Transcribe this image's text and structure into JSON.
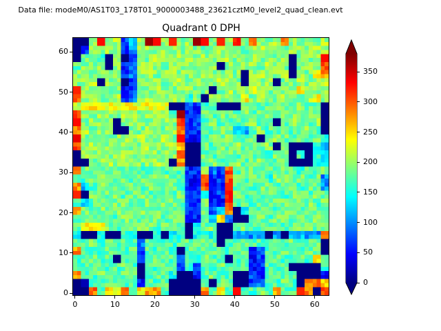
{
  "figure": {
    "suptitle": "Data file: modeM0/AS1T03_178T01_9000003488_23621cztM0_level2_quad_clean.evt",
    "background_color": "#ffffff"
  },
  "chart_data": {
    "type": "heatmap",
    "title": "Quadrant 0 DPH",
    "xlabel": "",
    "ylabel": "",
    "x_ticks": [
      0,
      10,
      20,
      30,
      40,
      50,
      60
    ],
    "y_ticks": [
      0,
      10,
      20,
      30,
      40,
      50,
      60
    ],
    "x_range": [
      -0.5,
      63.5
    ],
    "y_range": [
      -0.5,
      63.5
    ],
    "detector_grid": "64x64 detector pixels",
    "values_grid_note": "32x32 block estimate of the 64x64 DPH; row 0 = top of image (detector y 62-63), columns left to right (detector x 0-63); values are counts on the colorbar scale",
    "vmin": 0,
    "vmax": 380,
    "colormap": "jet",
    "colormap_stops": [
      [
        0.0,
        [
          0,
          0,
          128
        ]
      ],
      [
        0.125,
        [
          0,
          0,
          255
        ]
      ],
      [
        0.375,
        [
          0,
          255,
          255
        ]
      ],
      [
        0.625,
        [
          255,
          255,
          0
        ]
      ],
      [
        0.875,
        [
          255,
          0,
          0
        ]
      ],
      [
        1.0,
        [
          128,
          0,
          0
        ]
      ]
    ],
    "colorbar": {
      "ticks": [
        0,
        50,
        100,
        150,
        200,
        250,
        300,
        350
      ],
      "extend": "both",
      "over_color": "#800000",
      "under_color": "#000080"
    },
    "noise_amplitude": 26,
    "values": [
      [
        0,
        0,
        195,
        330,
        190,
        205,
        70,
        120,
        200,
        370,
        330,
        205,
        320,
        195,
        200,
        370,
        330,
        195,
        320,
        200,
        310,
        195,
        280,
        200,
        190,
        205,
        280,
        195,
        185,
        200,
        190,
        205
      ],
      [
        0,
        60,
        190,
        195,
        205,
        190,
        65,
        110,
        195,
        200,
        190,
        205,
        195,
        190,
        200,
        195,
        185,
        190,
        200,
        195,
        190,
        185,
        195,
        205,
        190,
        195,
        185,
        200,
        195,
        190,
        205,
        195
      ],
      [
        0,
        190,
        195,
        150,
        0,
        190,
        0,
        70,
        195,
        190,
        205,
        195,
        190,
        200,
        195,
        185,
        200,
        190,
        195,
        205,
        190,
        195,
        200,
        190,
        195,
        185,
        205,
        0,
        195,
        190,
        200,
        330
      ],
      [
        175,
        195,
        190,
        205,
        0,
        195,
        60,
        80,
        200,
        195,
        190,
        185,
        205,
        190,
        195,
        200,
        190,
        205,
        0,
        195,
        190,
        200,
        195,
        190,
        205,
        195,
        190,
        0,
        195,
        205,
        190,
        300
      ],
      [
        190,
        205,
        195,
        190,
        200,
        195,
        65,
        90,
        195,
        205,
        190,
        195,
        205,
        195,
        190,
        185,
        205,
        190,
        195,
        200,
        190,
        0,
        195,
        205,
        190,
        195,
        200,
        0,
        195,
        190,
        235,
        280
      ],
      [
        195,
        190,
        205,
        0,
        195,
        190,
        0,
        60,
        190,
        195,
        205,
        190,
        195,
        205,
        190,
        195,
        170,
        190,
        205,
        195,
        190,
        0,
        190,
        195,
        205,
        0,
        190,
        195,
        205,
        190,
        195,
        205
      ],
      [
        320,
        190,
        195,
        205,
        190,
        195,
        60,
        70,
        195,
        190,
        205,
        195,
        190,
        195,
        205,
        190,
        195,
        0,
        190,
        205,
        195,
        190,
        235,
        195,
        190,
        205,
        195,
        190,
        235,
        195,
        190,
        205
      ],
      [
        305,
        195,
        205,
        190,
        195,
        205,
        70,
        90,
        195,
        205,
        190,
        195,
        205,
        190,
        160,
        195,
        0,
        195,
        190,
        205,
        195,
        235,
        190,
        205,
        195,
        190,
        205,
        195,
        190,
        205,
        235,
        190
      ],
      [
        200,
        225,
        235,
        225,
        230,
        225,
        235,
        230,
        225,
        235,
        225,
        230,
        0,
        0,
        80,
        60,
        150,
        182,
        0,
        0,
        0,
        182,
        195,
        175,
        182,
        195,
        175,
        182,
        195,
        175,
        182,
        0
      ],
      [
        300,
        195,
        190,
        205,
        195,
        190,
        205,
        195,
        190,
        205,
        195,
        190,
        170,
        370,
        60,
        55,
        182,
        175,
        195,
        175,
        182,
        195,
        175,
        182,
        195,
        175,
        182,
        195,
        175,
        182,
        195,
        0
      ],
      [
        330,
        190,
        205,
        195,
        190,
        0,
        195,
        205,
        195,
        190,
        205,
        195,
        190,
        305,
        60,
        70,
        175,
        195,
        175,
        182,
        175,
        182,
        195,
        175,
        182,
        0,
        175,
        195,
        182,
        175,
        195,
        0
      ],
      [
        280,
        205,
        190,
        195,
        205,
        0,
        0,
        195,
        190,
        205,
        195,
        190,
        205,
        285,
        55,
        65,
        182,
        175,
        195,
        175,
        120,
        110,
        175,
        195,
        175,
        182,
        195,
        175,
        182,
        195,
        175,
        0
      ],
      [
        340,
        190,
        195,
        205,
        190,
        195,
        205,
        190,
        205,
        190,
        195,
        205,
        190,
        330,
        60,
        55,
        170,
        182,
        175,
        195,
        175,
        182,
        195,
        0,
        175,
        195,
        182,
        175,
        195,
        175,
        182,
        150
      ],
      [
        300,
        195,
        205,
        190,
        195,
        205,
        190,
        195,
        190,
        205,
        195,
        190,
        205,
        260,
        0,
        0,
        182,
        175,
        195,
        175,
        195,
        175,
        182,
        175,
        195,
        0,
        175,
        0,
        0,
        0,
        160,
        120
      ],
      [
        0,
        195,
        190,
        205,
        195,
        190,
        205,
        195,
        205,
        190,
        195,
        205,
        190,
        300,
        0,
        0,
        182,
        175,
        182,
        195,
        175,
        195,
        175,
        182,
        175,
        195,
        182,
        0,
        175,
        0,
        160,
        120
      ],
      [
        0,
        0,
        190,
        195,
        205,
        190,
        195,
        205,
        190,
        195,
        205,
        190,
        0,
        280,
        0,
        0,
        175,
        195,
        175,
        182,
        195,
        175,
        182,
        195,
        175,
        182,
        195,
        0,
        0,
        0,
        160,
        150
      ],
      [
        280,
        186,
        170,
        186,
        172,
        188,
        172,
        186,
        172,
        150,
        186,
        172,
        188,
        172,
        60,
        65,
        200,
        90,
        70,
        305,
        172,
        186,
        188,
        172,
        186,
        172,
        188,
        186,
        160,
        172,
        172,
        186
      ],
      [
        170,
        172,
        186,
        188,
        172,
        186,
        188,
        172,
        186,
        172,
        188,
        186,
        172,
        172,
        60,
        55,
        280,
        60,
        70,
        300,
        186,
        172,
        188,
        172,
        160,
        186,
        188,
        172,
        186,
        172,
        188,
        100
      ],
      [
        280,
        120,
        172,
        186,
        188,
        172,
        186,
        188,
        172,
        186,
        170,
        172,
        188,
        172,
        55,
        60,
        305,
        55,
        65,
        320,
        172,
        188,
        172,
        186,
        188,
        172,
        186,
        188,
        172,
        186,
        172,
        100
      ],
      [
        320,
        0,
        188,
        172,
        186,
        188,
        172,
        186,
        188,
        172,
        186,
        188,
        172,
        186,
        60,
        65,
        160,
        60,
        70,
        310,
        186,
        172,
        188,
        172,
        186,
        188,
        172,
        186,
        188,
        172,
        186,
        172
      ],
      [
        172,
        120,
        172,
        186,
        172,
        186,
        188,
        172,
        186,
        188,
        172,
        186,
        188,
        172,
        65,
        55,
        186,
        65,
        60,
        305,
        172,
        186,
        172,
        188,
        172,
        186,
        188,
        172,
        186,
        188,
        172,
        186
      ],
      [
        280,
        186,
        172,
        188,
        172,
        188,
        172,
        186,
        188,
        172,
        186,
        172,
        188,
        186,
        60,
        70,
        186,
        80,
        120,
        285,
        0,
        150,
        186,
        172,
        188,
        172,
        186,
        188,
        172,
        186,
        188,
        172
      ],
      [
        172,
        186,
        188,
        172,
        186,
        172,
        186,
        188,
        172,
        186,
        188,
        172,
        186,
        188,
        60,
        55,
        186,
        120,
        250,
        90,
        0,
        0,
        172,
        188,
        172,
        186,
        188,
        172,
        186,
        172,
        188,
        186
      ],
      [
        186,
        240,
        250,
        230,
        186,
        172,
        188,
        172,
        186,
        188,
        172,
        186,
        188,
        172,
        0,
        150,
        172,
        188,
        0,
        0,
        172,
        186,
        180,
        172,
        170,
        185,
        172,
        180,
        186,
        185,
        172,
        186
      ],
      [
        150,
        0,
        0,
        150,
        0,
        0,
        160,
        140,
        0,
        0,
        150,
        0,
        140,
        150,
        0,
        150,
        160,
        150,
        0,
        0,
        120,
        110,
        100,
        120,
        0,
        110,
        0,
        115,
        120,
        110,
        100,
        280
      ],
      [
        180,
        170,
        190,
        160,
        175,
        170,
        185,
        175,
        90,
        170,
        180,
        175,
        165,
        170,
        180,
        175,
        185,
        170,
        0,
        175,
        170,
        185,
        175,
        170,
        180,
        175,
        170,
        185,
        170,
        175,
        180,
        0
      ],
      [
        280,
        170,
        175,
        170,
        185,
        175,
        170,
        180,
        70,
        175,
        170,
        185,
        170,
        0,
        180,
        175,
        170,
        185,
        175,
        170,
        180,
        175,
        60,
        90,
        175,
        170,
        185,
        175,
        170,
        180,
        175,
        0
      ],
      [
        170,
        175,
        185,
        170,
        175,
        0,
        170,
        185,
        60,
        170,
        185,
        175,
        170,
        70,
        175,
        170,
        185,
        170,
        175,
        0,
        170,
        175,
        55,
        70,
        175,
        185,
        170,
        175,
        185,
        170,
        235,
        175
      ],
      [
        175,
        170,
        185,
        175,
        170,
        175,
        185,
        170,
        0,
        175,
        170,
        185,
        175,
        70,
        170,
        60,
        175,
        170,
        185,
        175,
        170,
        185,
        60,
        65,
        170,
        175,
        185,
        0,
        0,
        0,
        0,
        170
      ],
      [
        280,
        175,
        170,
        185,
        175,
        170,
        180,
        175,
        0,
        170,
        175,
        170,
        150,
        0,
        0,
        60,
        170,
        185,
        170,
        175,
        0,
        0,
        90,
        60,
        170,
        185,
        175,
        170,
        0,
        0,
        0,
        40
      ],
      [
        0,
        20,
        175,
        170,
        185,
        175,
        170,
        175,
        60,
        175,
        170,
        175,
        0,
        0,
        0,
        0,
        170,
        0,
        185,
        170,
        0,
        0,
        70,
        90,
        175,
        170,
        185,
        175,
        0,
        270,
        280,
        250
      ],
      [
        0,
        0,
        290,
        170,
        250,
        240,
        280,
        175,
        240,
        270,
        280,
        175,
        0,
        0,
        0,
        0,
        280,
        175,
        240,
        170,
        330,
        175,
        170,
        185,
        170,
        260,
        175,
        170,
        320,
        290,
        0,
        300
      ]
    ]
  }
}
